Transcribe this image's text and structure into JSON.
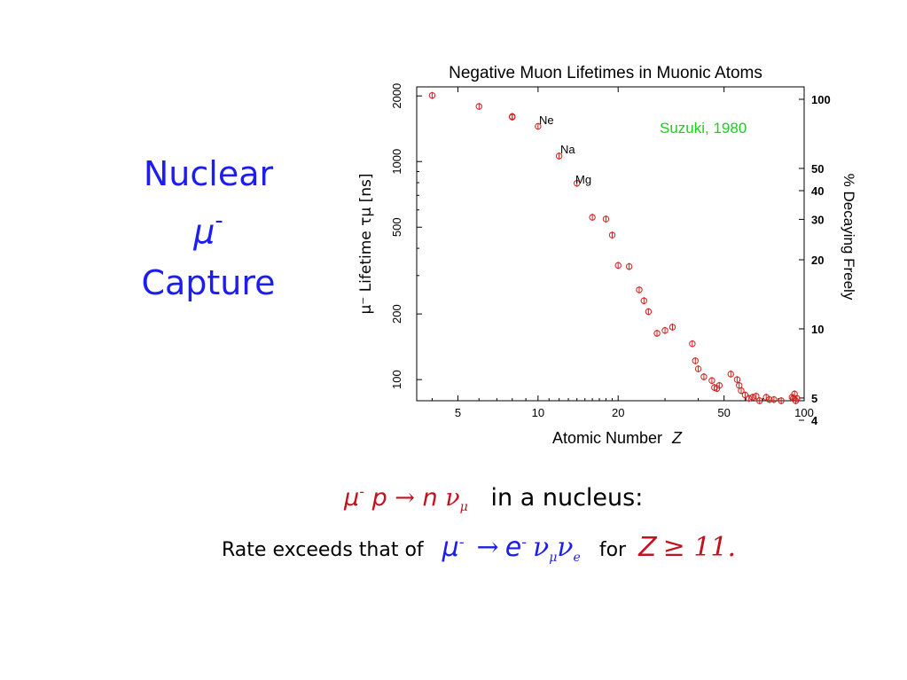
{
  "slide": {
    "side_title": {
      "line1": "Nuclear",
      "line2_symbol": "μ",
      "line2_sup": "-",
      "line3": "Capture"
    },
    "formula1": {
      "mu": "μ",
      "mu_sup": "-",
      "p": "p",
      "arrow": "→",
      "n": "n",
      "nu": "ν",
      "nu_sub": "μ",
      "tail": "in a nucleus:"
    },
    "formula2": {
      "prefix": "Rate exceeds that of",
      "mu": "μ",
      "mu_sup": "-",
      "arrow": "→",
      "e": "e",
      "e_sup": "-",
      "nu1": "ν",
      "nu1_sub": "μ",
      "nu2": "ν",
      "nu2_sub": "e",
      "for_word": "for",
      "Z": "Z",
      "condition": "≥ 11."
    }
  },
  "chart_data": {
    "type": "scatter",
    "title": "Negative Muon Lifetimes in Muonic Atoms",
    "xlabel": "Atomic Number",
    "xlabel_var": "Z",
    "ylabel": "μ⁻ Lifetime τμ [ns]",
    "ylabel_right": "% Decaying Freely",
    "annotation": "Suzuki, 1980",
    "x_scale": "log",
    "y_scale": "log",
    "xlim": [
      3.5,
      100
    ],
    "ylim": [
      80,
      2200
    ],
    "x_ticks": [
      5,
      10,
      20,
      50,
      100
    ],
    "x_tick_labels": [
      "5",
      "10",
      "20",
      "50",
      "100"
    ],
    "y_ticks": [
      100,
      200,
      500,
      1000,
      2000
    ],
    "y_tick_labels": [
      "100",
      "200",
      "500",
      "1000",
      "2000"
    ],
    "right_ticks_percent": [
      100,
      50,
      40,
      30,
      20,
      10,
      5,
      4
    ],
    "right_tick_labels": [
      "100",
      "50",
      "40",
      "30",
      "20",
      "10",
      "5",
      "4"
    ],
    "point_labels": [
      {
        "text": "Ne",
        "Z": 10
      },
      {
        "text": "Na",
        "Z": 11
      },
      {
        "text": "Mg",
        "Z": 12
      }
    ],
    "colors": {
      "points": "#d21e1e",
      "annotation": "#19d119",
      "axes": "#000000"
    },
    "points": [
      [
        4,
        2010
      ],
      [
        6,
        1790
      ],
      [
        8,
        1610
      ],
      [
        8,
        1600
      ],
      [
        10,
        1450
      ],
      [
        12,
        1060
      ],
      [
        14,
        795
      ],
      [
        16,
        555
      ],
      [
        18,
        545
      ],
      [
        19,
        460
      ],
      [
        20,
        334
      ],
      [
        22,
        330
      ],
      [
        24,
        258
      ],
      [
        25,
        230
      ],
      [
        26,
        205
      ],
      [
        28,
        163
      ],
      [
        30,
        168
      ],
      [
        32,
        174
      ],
      [
        38,
        146
      ],
      [
        39,
        122
      ],
      [
        40,
        112
      ],
      [
        42,
        103
      ],
      [
        45,
        99
      ],
      [
        46,
        92
      ],
      [
        47,
        91
      ],
      [
        48,
        94
      ],
      [
        53,
        106
      ],
      [
        56,
        100
      ],
      [
        57,
        94
      ],
      [
        58,
        89
      ],
      [
        60,
        85
      ],
      [
        62,
        82
      ],
      [
        64,
        83
      ],
      [
        66,
        84
      ],
      [
        68,
        80
      ],
      [
        72,
        83
      ],
      [
        74,
        81
      ],
      [
        77,
        81
      ],
      [
        82,
        80
      ],
      [
        90,
        83
      ],
      [
        91,
        82
      ],
      [
        92,
        86
      ],
      [
        93,
        80
      ],
      [
        94,
        82
      ]
    ]
  }
}
